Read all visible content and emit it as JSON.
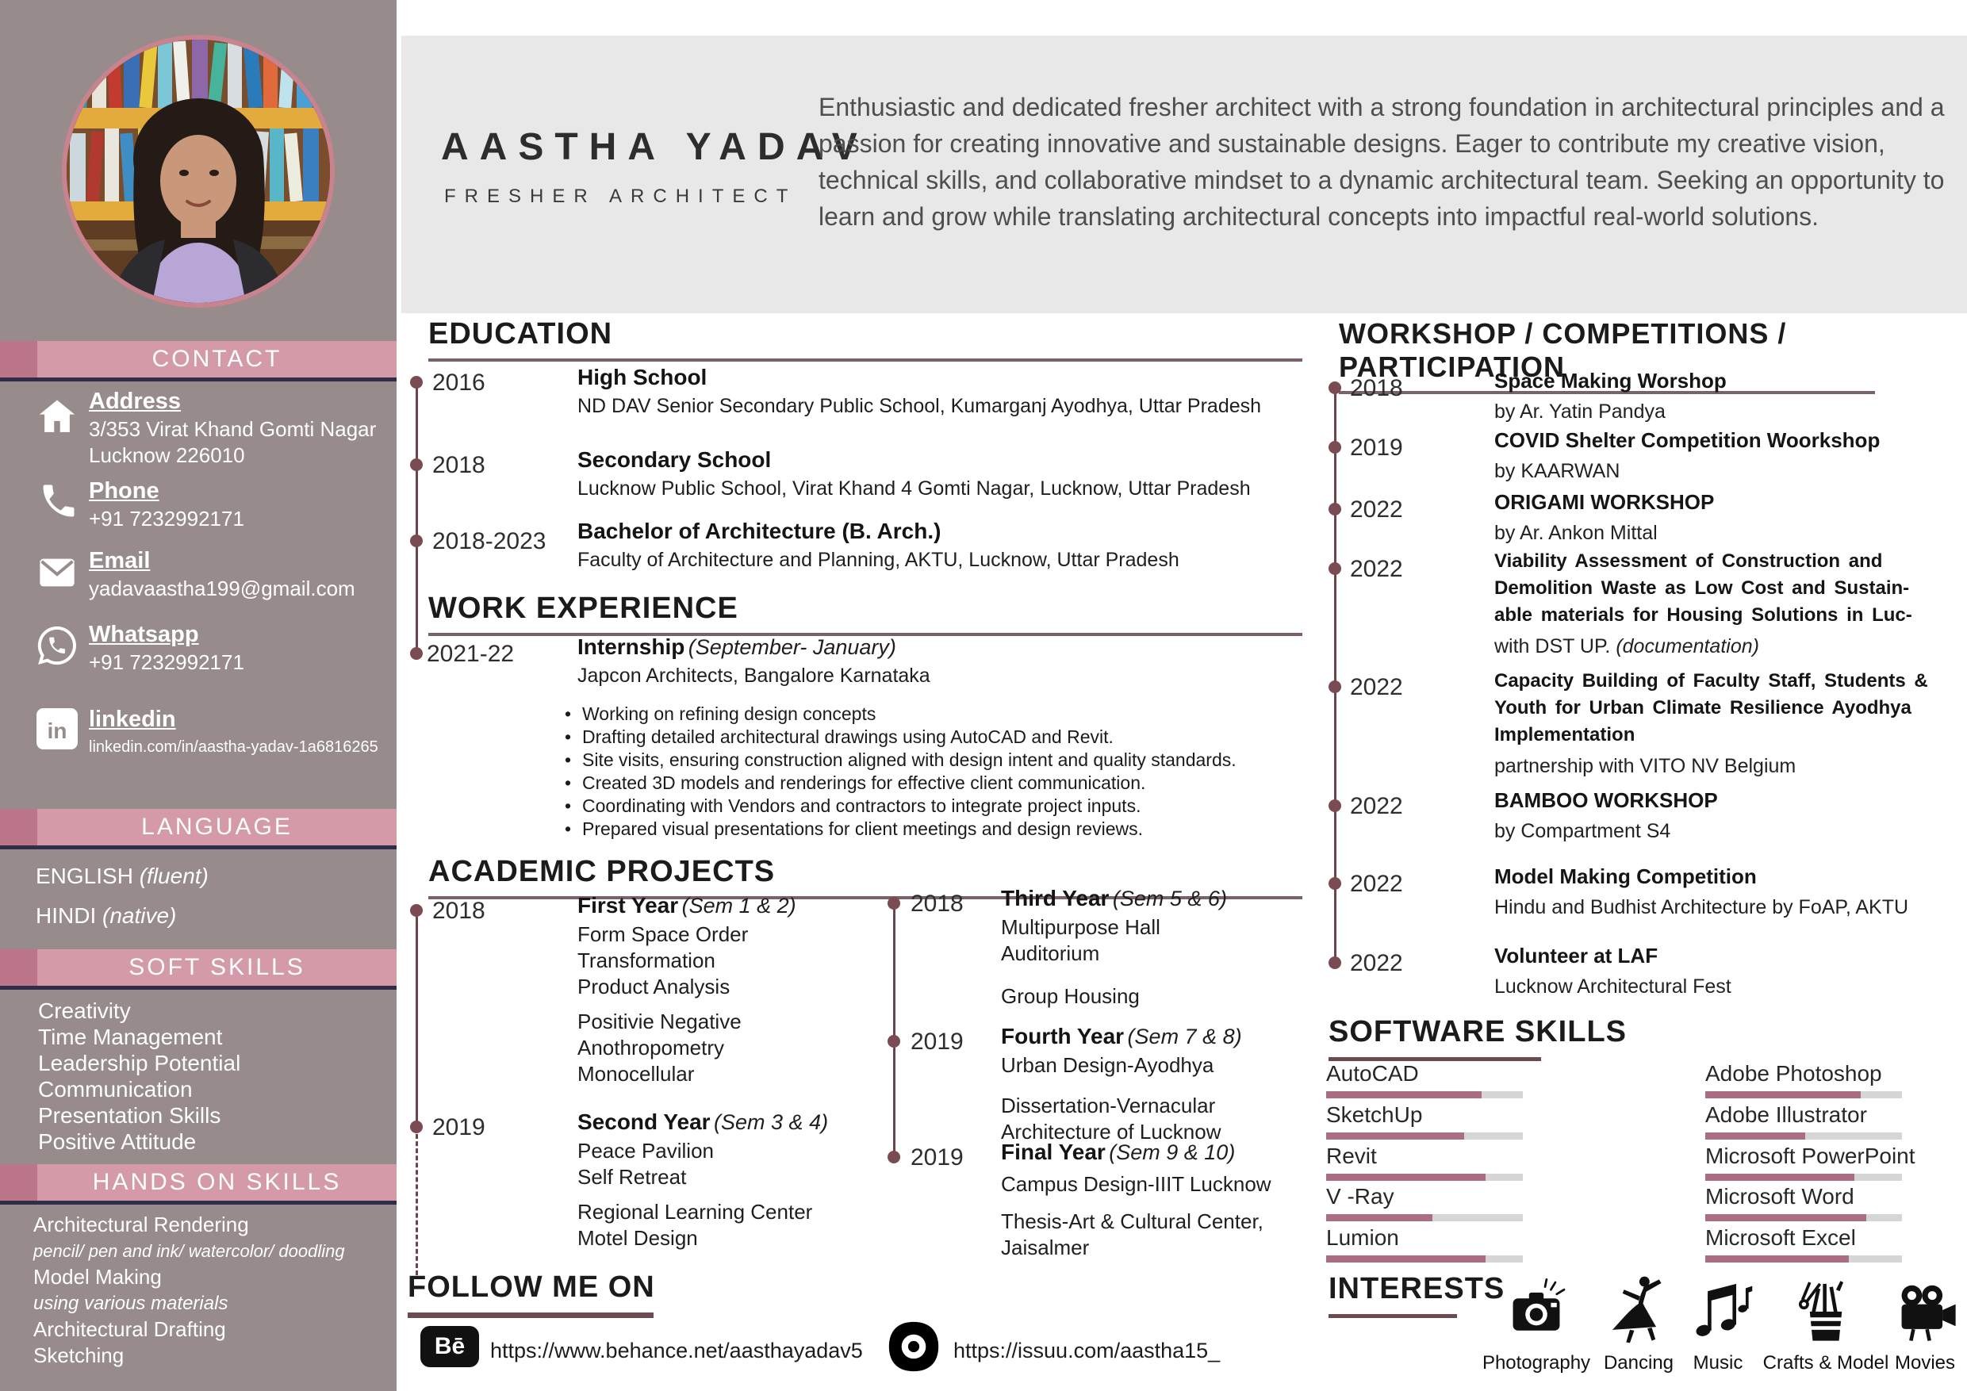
{
  "colors": {
    "sidebar_bg": "#978b8c",
    "header_bar_pink": "#d59aa8",
    "header_bar_rose": "#bd7689",
    "header_underline_navy": "#2f2d47",
    "timeline_maroon": "#7a4b52",
    "section_rule": "#7b6365",
    "skill_bar_fill": "#ab6e80",
    "skill_bar_track": "#d6d6d6",
    "band_gray": "#e9e8e8"
  },
  "profile": {
    "name": "AASTHA YADAV",
    "role": "FRESHER ARCHITECT",
    "summary": "Enthusiastic and dedicated fresher architect with a strong foundation in architectural principles and a passion for creating innovative and sustainable designs. Eager to contribute my creative vision, technical skills, and collaborative mindset to a dynamic architectural team. Seeking an opportunity to learn and grow while translating architectural concepts into impactful real-world solutions."
  },
  "contact": {
    "title": "CONTACT",
    "items": [
      {
        "label": "Address",
        "value1": "3/353 Virat Khand Gomti Nagar",
        "value2": "Lucknow 226010"
      },
      {
        "label": "Phone",
        "value1": "+91 7232992171"
      },
      {
        "label": "Email",
        "value1": "yadavaastha199@gmail.com"
      },
      {
        "label": "Whatsapp",
        "value1": "+91 7232992171"
      },
      {
        "label": "linkedin",
        "value1": "linkedin.com/in/aastha-yadav-1a6816265"
      }
    ]
  },
  "language": {
    "title": "LANGUAGE",
    "items": [
      {
        "name": "ENGLISH",
        "level": "(fluent)"
      },
      {
        "name": "HINDI ",
        "level": "(native)"
      }
    ]
  },
  "soft_skills": {
    "title": "SOFT SKILLS",
    "items": [
      "Creativity",
      "Time Management",
      "Leadership Potential",
      "Communication",
      "Presentation Skills",
      "Positive Attitude"
    ]
  },
  "hands_on_skills": {
    "title": "HANDS ON SKILLS",
    "items": [
      "Architectural Rendering",
      "pencil/ pen and ink/ watercolor/ doodling",
      "Model Making",
      "using various materials",
      "Architectural Drafting",
      "Sketching"
    ]
  },
  "education": {
    "title": "EDUCATION",
    "entries": [
      {
        "year": "2016",
        "title": "High School",
        "detail": "ND DAV Senior Secondary Public School, Kumarganj Ayodhya, Uttar Pradesh"
      },
      {
        "year": "2018",
        "title": "Secondary  School",
        "detail": "Lucknow Public School, Virat Khand 4 Gomti Nagar, Lucknow, Uttar Pradesh"
      },
      {
        "year": "2018-2023",
        "title": "Bachelor of Architecture (B. Arch.)",
        "detail": "Faculty of Architecture and Planning, AKTU, Lucknow, Uttar Pradesh"
      }
    ]
  },
  "work": {
    "title": "WORK  EXPERIENCE",
    "entry": {
      "year": "2021-22",
      "title": "Internship",
      "note": "(September- January)",
      "org": "Japcon Architects, Bangalore  Karnataka",
      "bullets": [
        "Working on refining design concepts",
        "Drafting detailed architectural drawings using AutoCAD and Revit.",
        "Site visits, ensuring construction aligned with design intent and quality standards.",
        "Created 3D models and renderings for effective client communication.",
        "Coordinating with Vendors and contractors to integrate project inputs.",
        "Prepared visual presentations for client meetings and design reviews."
      ]
    }
  },
  "projects": {
    "title": "ACADEMIC PROJECTS",
    "l1": {
      "year": "2018",
      "title": "First Year",
      "note": "(Sem 1 & 2)",
      "a": [
        "Form Space Order",
        "Transformation",
        "Product Analysis"
      ],
      "b": [
        "Positivie Negative",
        "Anothropometry",
        "Monocellular"
      ]
    },
    "l2": {
      "year": "2019",
      "title": "Second Year",
      "note": "(Sem 3 & 4)",
      "a": [
        "Peace Pavilion",
        "Self Retreat"
      ],
      "b": [
        "Regional Learning Center",
        "Motel Design"
      ]
    },
    "r1": {
      "year": "2018",
      "title": "Third Year",
      "note": "(Sem 5 & 6)",
      "a": [
        "Multipurpose Hall",
        "Auditorium"
      ],
      "b": [
        "Group Housing"
      ]
    },
    "r2": {
      "year": "2019",
      "title": "Fourth Year",
      "note": "(Sem 7 & 8)",
      "a": [
        "Urban Design-Ayodhya"
      ],
      "b": [
        "Dissertation-Vernacular",
        "Architecture of Lucknow"
      ]
    },
    "r3": {
      "year": "2019",
      "title": "Final Year",
      "note": "(Sem 9 & 10)",
      "a": [
        "Campus Design-IIIT Lucknow"
      ],
      "b": [
        "Thesis-Art & Cultural Center,",
        "Jaisalmer"
      ]
    }
  },
  "follow": {
    "title": "FOLLOW ME ON",
    "behance_icon_text": "Bē",
    "behance_url": "https://www.behance.net/aasthayadav5",
    "issuu_url": "https://issuu.com/aastha15_"
  },
  "workshops": {
    "title": "WORKSHOP / COMPETITIONS / PARTICIPATION",
    "entries": [
      {
        "year": "2018",
        "title_lines": [
          "Space Making Worshop"
        ],
        "detail": "by Ar. Yatin Pandya"
      },
      {
        "year": "2019",
        "title_lines": [
          "COVID Shelter Competition Woorkshop"
        ],
        "detail": "by KAARWAN"
      },
      {
        "year": "2022",
        "title_lines": [
          "ORIGAMI WORKSHOP"
        ],
        "detail": "by Ar. Ankon Mittal"
      },
      {
        "year": "2022",
        "title_lines": [
          "Viability Assessment of Construction and",
          "Demolition Waste as Low Cost and Sustain-",
          "able materials for Housing Solutions in Luc-"
        ],
        "detail": "with DST UP.",
        "detail_note": "(documentation)"
      },
      {
        "year": "2022",
        "title_lines": [
          "Capacity Building of Faculty Staff, Students &",
          "Youth for Urban Climate Resilience Ayodhya",
          "Implementation"
        ],
        "detail": "partnership with VITO NV Belgium"
      },
      {
        "year": "2022",
        "title_lines": [
          "BAMBOO WORKSHOP"
        ],
        "detail": "by Compartment S4"
      },
      {
        "year": "2022",
        "title_lines": [
          "Model Making Competition"
        ],
        "detail": "Hindu and Budhist Architecture by FoAP, AKTU"
      },
      {
        "year": "2022",
        "title_lines": [
          "Volunteer at LAF"
        ],
        "detail": "Lucknow Architectural Fest"
      }
    ]
  },
  "software": {
    "title": "SOFTWARE SKILLS",
    "left": [
      {
        "name": "AutoCAD",
        "level": 79
      },
      {
        "name": "SketchUp",
        "level": 70
      },
      {
        "name": "Revit",
        "level": 81
      },
      {
        "name": "V -Ray",
        "level": 54
      },
      {
        "name": "Lumion",
        "level": 81
      }
    ],
    "right": [
      {
        "name": "Adobe Photoshop",
        "level": 79
      },
      {
        "name": "Adobe Illustrator",
        "level": 51
      },
      {
        "name": "Microsoft PowerPoint",
        "level": 76
      },
      {
        "name": "Microsoft Word",
        "level": 82
      },
      {
        "name": "Microsoft Excel",
        "level": 73
      }
    ]
  },
  "interests": {
    "title": "INTERESTS",
    "items": [
      {
        "label": "Photography"
      },
      {
        "label": "Dancing"
      },
      {
        "label": "Music"
      },
      {
        "label": "Crafts & Model"
      },
      {
        "label": "Movies"
      }
    ]
  }
}
